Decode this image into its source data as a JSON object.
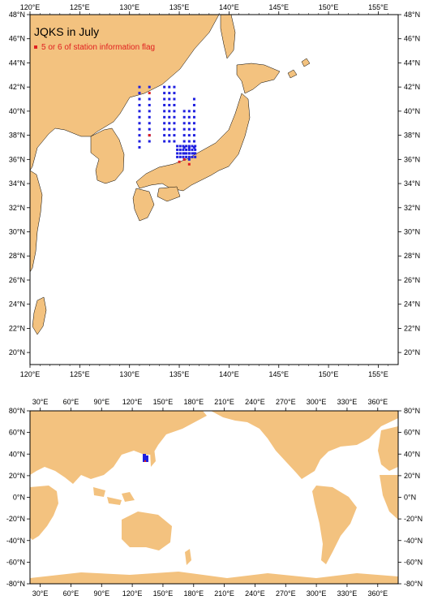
{
  "top_map": {
    "title": "JQKS in July",
    "legend_label": "5 or 6 of station information flag",
    "lon_ticks": [
      "120°E",
      "125°E",
      "130°E",
      "135°E",
      "140°E",
      "145°E",
      "150°E",
      "155°E"
    ],
    "lat_ticks": [
      "48°N",
      "46°N",
      "44°N",
      "42°N",
      "40°N",
      "38°N",
      "36°N",
      "34°N",
      "32°N",
      "30°N",
      "28°N",
      "26°N",
      "24°N",
      "22°N",
      "20°N"
    ]
  },
  "bottom_map": {
    "lon_ticks": [
      "30°E",
      "60°E",
      "90°E",
      "120°E",
      "150°E",
      "180°E",
      "210°E",
      "240°E",
      "270°E",
      "300°E",
      "330°E",
      "360°E"
    ],
    "lat_ticks": [
      "80°N",
      "60°N",
      "40°N",
      "20°N",
      "0°N",
      "-20°N",
      "-40°N",
      "-60°N",
      "-80°N"
    ]
  },
  "colors": {
    "land": "#f3c27f",
    "station": "#1f1fe0",
    "flagged": "#e02020"
  },
  "chart_data": {
    "type": "scatter",
    "title": "JQKS in July",
    "series": [
      {
        "name": "5 or 6 of station information flag",
        "color": "#e02020",
        "points": [
          [
            132,
            41.5
          ],
          [
            132,
            38
          ],
          [
            135,
            35.8
          ],
          [
            136,
            35.6
          ],
          [
            135.5,
            36
          ]
        ]
      }
    ],
    "stations_blue_lon": [
      131,
      132,
      133.5,
      134,
      134.5,
      135.5,
      136,
      136.5
    ],
    "stations_blue_lat": [
      36,
      42
    ]
  }
}
